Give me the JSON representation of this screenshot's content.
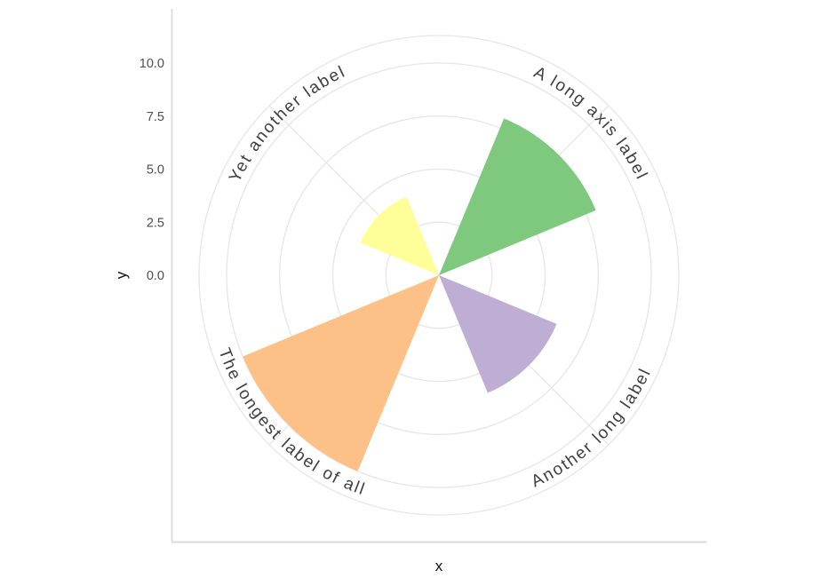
{
  "chart_data": {
    "type": "bar",
    "coord": "polar",
    "categories": [
      "A long axis label",
      "Another long label",
      "The longest label of all",
      "Yet another label"
    ],
    "values": [
      8,
      6,
      10,
      4
    ],
    "bar_colors": [
      "#7FC97F",
      "#BEAED4",
      "#FDC086",
      "#FFFF99"
    ],
    "category_angles_deg": [
      45,
      135,
      225,
      315
    ],
    "bar_angular_width_deg": 45,
    "xlabel": "x",
    "ylabel": "y",
    "r_axis": {
      "ticks": [
        0,
        2.5,
        5,
        7.5,
        10
      ],
      "tick_labels": [
        "0.0",
        "2.5",
        "5.0",
        "7.5",
        "10.0"
      ],
      "lim": [
        0,
        11.3
      ]
    },
    "grid": true,
    "legend": "none",
    "title": ""
  },
  "axes": {
    "x_title": "x",
    "y_title": "y"
  },
  "style": {
    "background": "#ffffff",
    "grid_color": "#e6e6e6",
    "axis_line_color": "#d9d9d9",
    "tick_text_color": "#4d4d4d",
    "theta_label_color": "#3f3f3f"
  }
}
